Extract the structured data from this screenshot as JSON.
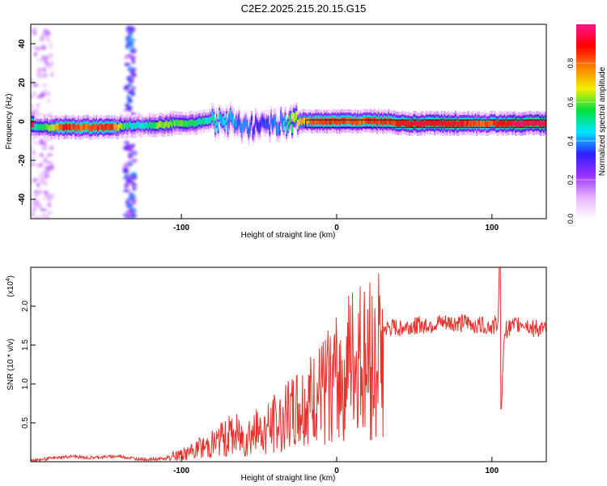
{
  "title": "C2E2.2025.215.20.15.G15",
  "chart_data": [
    {
      "type": "heatmap",
      "xlabel": "Height of straight line (km)",
      "ylabel": "Frequency (Hz)",
      "xlim": [
        -197,
        135
      ],
      "ylim": [
        -50,
        50
      ],
      "xticks": [
        -100,
        0,
        100
      ],
      "yticks": [
        -40,
        -20,
        0,
        20,
        40
      ],
      "band": [
        {
          "x": -195,
          "f": -3,
          "amp": 0.5
        },
        {
          "x": -185,
          "f": -3,
          "amp": 0.6
        },
        {
          "x": -175,
          "f": -3,
          "amp": 0.9
        },
        {
          "x": -165,
          "f": -3,
          "amp": 0.8
        },
        {
          "x": -155,
          "f": -3,
          "amp": 0.85
        },
        {
          "x": -145,
          "f": -3,
          "amp": 0.85
        },
        {
          "x": -135,
          "f": -2,
          "amp": 0.5
        },
        {
          "x": -125,
          "f": -2,
          "amp": 0.45
        },
        {
          "x": -115,
          "f": -2,
          "amp": 0.6
        },
        {
          "x": -105,
          "f": -1,
          "amp": 0.6
        },
        {
          "x": -95,
          "f": -1,
          "amp": 0.55
        },
        {
          "x": -85,
          "f": 0,
          "amp": 0.5
        },
        {
          "x": -75,
          "f": 1,
          "amp": 0.45
        },
        {
          "x": -65,
          "f": 0,
          "amp": 0.4
        },
        {
          "x": -55,
          "f": -3,
          "amp": 0.35
        },
        {
          "x": -45,
          "f": -2,
          "amp": 0.35
        },
        {
          "x": -35,
          "f": 0,
          "amp": 0.4
        },
        {
          "x": -25,
          "f": 0,
          "amp": 0.7
        },
        {
          "x": -15,
          "f": 0,
          "amp": 0.8
        },
        {
          "x": -5,
          "f": 0,
          "amp": 0.85
        },
        {
          "x": 5,
          "f": 0,
          "amp": 0.85
        },
        {
          "x": 15,
          "f": 0,
          "amp": 0.8
        },
        {
          "x": 25,
          "f": 0,
          "amp": 0.85
        },
        {
          "x": 35,
          "f": 0,
          "amp": 0.85
        },
        {
          "x": 45,
          "f": -1,
          "amp": 0.9
        },
        {
          "x": 55,
          "f": -1,
          "amp": 0.9
        },
        {
          "x": 65,
          "f": -1,
          "amp": 0.9
        },
        {
          "x": 75,
          "f": -1,
          "amp": 0.9
        },
        {
          "x": 85,
          "f": -1,
          "amp": 0.85
        },
        {
          "x": 95,
          "f": -1,
          "amp": 0.8
        },
        {
          "x": 105,
          "f": -1,
          "amp": 0.85
        },
        {
          "x": 115,
          "f": -1,
          "amp": 0.95
        },
        {
          "x": 125,
          "f": -1,
          "amp": 0.95
        },
        {
          "x": 135,
          "f": -1,
          "amp": 0.95
        }
      ],
      "broadband_columns": [
        {
          "x": -190,
          "amp": 0.15
        },
        {
          "x": -133,
          "amp": 0.35
        }
      ],
      "colorbar": {
        "label": "Normalized spectral amplitude",
        "range": [
          0.0,
          1.0
        ],
        "ticks": [
          0.0,
          0.2,
          0.4,
          0.6,
          0.8
        ],
        "tick_labels": [
          "0.0",
          "0.2",
          "0.4",
          "0.6",
          "0.8"
        ],
        "colors": [
          "#ffffff",
          "#e6b3ff",
          "#9b30ff",
          "#3020ff",
          "#00e5ff",
          "#00e040",
          "#f0f000",
          "#ff8000",
          "#ff0000",
          "#ff1493"
        ]
      }
    },
    {
      "type": "line",
      "color": "#e8322c",
      "xlabel": "Height of straight line (km)",
      "ylabel": "SNR (10 * v/v)",
      "y_multiplier": "(x10",
      "y_multiplier_exp": "4",
      "y_multiplier_close": ")",
      "xlim": [
        -197,
        135
      ],
      "ylim": [
        0,
        2.5
      ],
      "xticks": [
        -100,
        0,
        100
      ],
      "yticks": [
        0.5,
        1.0,
        1.5,
        2.0
      ],
      "ytick_labels": [
        "0.5",
        "1.0",
        "1.5",
        "2.0"
      ],
      "x": [
        -197,
        -190,
        -180,
        -170,
        -160,
        -150,
        -140,
        -130,
        -120,
        -110,
        -105,
        -100,
        -95,
        -90,
        -85,
        -80,
        -75,
        -70,
        -65,
        -60,
        -55,
        -50,
        -45,
        -40,
        -35,
        -30,
        -25,
        -20,
        -15,
        -10,
        -5,
        0,
        5,
        10,
        15,
        20,
        25,
        30,
        40,
        50,
        60,
        70,
        80,
        90,
        95,
        100,
        104,
        105,
        106,
        108,
        110,
        115,
        120,
        125,
        130,
        135
      ],
      "y": [
        0.02,
        0.03,
        0.05,
        0.07,
        0.05,
        0.06,
        0.07,
        0.04,
        0.03,
        0.04,
        0.1,
        0.12,
        0.15,
        0.2,
        0.25,
        0.3,
        0.35,
        0.4,
        0.45,
        0.4,
        0.5,
        0.45,
        0.55,
        0.6,
        0.7,
        0.75,
        0.85,
        0.9,
        0.95,
        1.05,
        1.2,
        1.35,
        1.45,
        1.55,
        1.6,
        1.65,
        1.68,
        1.7,
        1.72,
        1.75,
        1.77,
        1.78,
        1.78,
        1.77,
        1.76,
        1.74,
        1.8,
        2.5,
        0.68,
        1.65,
        1.72,
        1.75,
        1.8,
        1.73,
        1.7,
        1.68
      ]
    }
  ]
}
